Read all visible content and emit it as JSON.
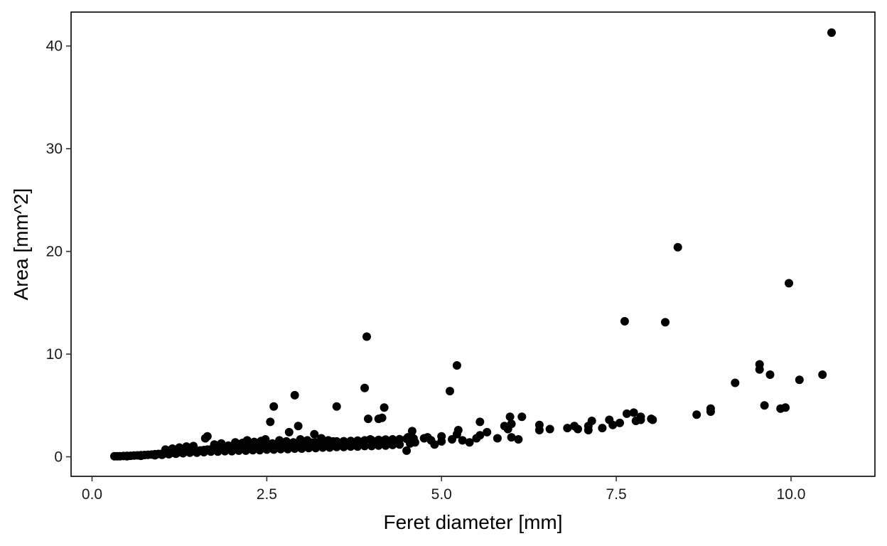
{
  "chart_data": {
    "type": "scatter",
    "title": "",
    "xlabel": "Feret diameter  [mm]",
    "ylabel": "Area  [mm^2]",
    "xlim": [
      -0.3,
      11.2
    ],
    "ylim": [
      -1.9,
      43.3
    ],
    "x_ticks": [
      0.0,
      2.5,
      5.0,
      7.5,
      10.0
    ],
    "x_tick_labels": [
      "0.0",
      "2.5",
      "5.0",
      "7.5",
      "10.0"
    ],
    "y_ticks": [
      0,
      10,
      20,
      30,
      40
    ],
    "y_tick_labels": [
      "0",
      "10",
      "20",
      "30",
      "40"
    ],
    "grid": false,
    "legend": "none",
    "point_color": "#000000",
    "points": [
      [
        0.32,
        0.05
      ],
      [
        0.36,
        0.06
      ],
      [
        0.4,
        0.05
      ],
      [
        0.45,
        0.08
      ],
      [
        0.5,
        0.09
      ],
      [
        0.55,
        0.1
      ],
      [
        0.6,
        0.12
      ],
      [
        0.65,
        0.14
      ],
      [
        0.7,
        0.16
      ],
      [
        0.75,
        0.18
      ],
      [
        0.8,
        0.2
      ],
      [
        0.85,
        0.22
      ],
      [
        0.9,
        0.25
      ],
      [
        0.95,
        0.28
      ],
      [
        1.0,
        0.3
      ],
      [
        1.05,
        0.34
      ],
      [
        1.1,
        0.38
      ],
      [
        1.15,
        0.4
      ],
      [
        1.2,
        0.44
      ],
      [
        1.25,
        0.46
      ],
      [
        1.3,
        0.5
      ],
      [
        1.35,
        0.52
      ],
      [
        1.4,
        0.55
      ],
      [
        1.45,
        0.58
      ],
      [
        1.5,
        0.6
      ],
      [
        1.55,
        0.62
      ],
      [
        1.6,
        0.66
      ],
      [
        1.65,
        0.7
      ],
      [
        1.7,
        0.72
      ],
      [
        1.75,
        0.75
      ],
      [
        1.8,
        0.78
      ],
      [
        1.85,
        0.8
      ],
      [
        1.9,
        0.82
      ],
      [
        1.95,
        0.85
      ],
      [
        2.0,
        0.88
      ],
      [
        2.05,
        0.9
      ],
      [
        2.1,
        0.92
      ],
      [
        2.15,
        0.95
      ],
      [
        2.2,
        0.98
      ],
      [
        2.25,
        1.0
      ],
      [
        2.3,
        1.02
      ],
      [
        2.35,
        1.05
      ],
      [
        2.4,
        1.08
      ],
      [
        2.45,
        1.1
      ],
      [
        2.5,
        1.1
      ],
      [
        2.55,
        1.12
      ],
      [
        2.6,
        1.15
      ],
      [
        2.65,
        1.18
      ],
      [
        2.7,
        1.2
      ],
      [
        2.75,
        1.22
      ],
      [
        2.8,
        1.25
      ],
      [
        2.85,
        1.25
      ],
      [
        2.9,
        1.28
      ],
      [
        2.95,
        1.3
      ],
      [
        3.0,
        1.32
      ],
      [
        3.05,
        1.35
      ],
      [
        3.1,
        1.36
      ],
      [
        3.15,
        1.38
      ],
      [
        3.2,
        1.4
      ],
      [
        3.25,
        1.42
      ],
      [
        3.3,
        1.44
      ],
      [
        3.35,
        1.45
      ],
      [
        3.4,
        1.48
      ],
      [
        3.45,
        1.5
      ],
      [
        3.5,
        1.5
      ],
      [
        3.6,
        1.52
      ],
      [
        3.7,
        1.55
      ],
      [
        3.8,
        1.58
      ],
      [
        3.9,
        1.6
      ],
      [
        4.0,
        1.62
      ],
      [
        4.1,
        1.65
      ],
      [
        4.2,
        1.68
      ],
      [
        4.3,
        1.7
      ],
      [
        4.4,
        1.72
      ],
      [
        4.5,
        1.75
      ],
      [
        4.6,
        1.78
      ],
      [
        4.75,
        1.8
      ],
      [
        0.5,
        0.05
      ],
      [
        0.7,
        0.1
      ],
      [
        0.9,
        0.15
      ],
      [
        1.0,
        0.2
      ],
      [
        1.1,
        0.25
      ],
      [
        1.2,
        0.3
      ],
      [
        1.3,
        0.35
      ],
      [
        1.4,
        0.4
      ],
      [
        1.5,
        0.4
      ],
      [
        1.6,
        0.45
      ],
      [
        1.7,
        0.5
      ],
      [
        1.8,
        0.5
      ],
      [
        1.9,
        0.55
      ],
      [
        2.0,
        0.55
      ],
      [
        2.1,
        0.6
      ],
      [
        2.2,
        0.6
      ],
      [
        2.3,
        0.65
      ],
      [
        2.4,
        0.65
      ],
      [
        2.5,
        0.7
      ],
      [
        2.6,
        0.7
      ],
      [
        2.7,
        0.75
      ],
      [
        2.8,
        0.75
      ],
      [
        2.9,
        0.8
      ],
      [
        3.0,
        0.8
      ],
      [
        3.1,
        0.85
      ],
      [
        3.2,
        0.85
      ],
      [
        3.3,
        0.9
      ],
      [
        3.4,
        0.9
      ],
      [
        3.5,
        0.95
      ],
      [
        3.6,
        0.95
      ],
      [
        3.7,
        1.0
      ],
      [
        3.8,
        1.0
      ],
      [
        3.9,
        1.05
      ],
      [
        4.0,
        1.05
      ],
      [
        4.1,
        1.1
      ],
      [
        4.2,
        1.1
      ],
      [
        4.3,
        1.15
      ],
      [
        4.4,
        1.2
      ],
      [
        4.5,
        0.6
      ],
      [
        4.55,
        1.3
      ],
      [
        1.05,
        0.7
      ],
      [
        1.15,
        0.8
      ],
      [
        1.25,
        0.9
      ],
      [
        1.35,
        1.0
      ],
      [
        1.45,
        1.05
      ],
      [
        1.62,
        1.8
      ],
      [
        1.65,
        2.0
      ],
      [
        1.75,
        1.2
      ],
      [
        1.85,
        1.3
      ],
      [
        1.95,
        1.1
      ],
      [
        2.05,
        1.4
      ],
      [
        2.15,
        1.35
      ],
      [
        2.22,
        1.6
      ],
      [
        2.32,
        1.45
      ],
      [
        2.42,
        1.55
      ],
      [
        2.48,
        1.7
      ],
      [
        2.58,
        1.3
      ],
      [
        2.68,
        1.6
      ],
      [
        2.78,
        1.5
      ],
      [
        2.88,
        1.4
      ],
      [
        2.98,
        1.7
      ],
      [
        3.08,
        1.6
      ],
      [
        3.18,
        2.2
      ],
      [
        3.28,
        1.8
      ],
      [
        3.38,
        1.6
      ],
      [
        3.48,
        1.4
      ],
      [
        3.58,
        1.2
      ],
      [
        3.68,
        1.3
      ],
      [
        3.78,
        1.1
      ],
      [
        3.88,
        1.5
      ],
      [
        3.98,
        1.7
      ],
      [
        4.08,
        1.4
      ],
      [
        4.18,
        1.6
      ],
      [
        4.28,
        1.5
      ],
      [
        4.38,
        1.4
      ],
      [
        4.52,
        1.9
      ],
      [
        4.58,
        2.5
      ],
      [
        4.62,
        1.4
      ],
      [
        2.55,
        3.4
      ],
      [
        2.6,
        4.9
      ],
      [
        2.82,
        2.4
      ],
      [
        2.9,
        6.0
      ],
      [
        2.95,
        3.0
      ],
      [
        3.5,
        4.9
      ],
      [
        3.9,
        6.7
      ],
      [
        3.93,
        11.7
      ],
      [
        3.95,
        3.7
      ],
      [
        4.1,
        3.7
      ],
      [
        4.15,
        3.8
      ],
      [
        4.18,
        4.8
      ],
      [
        4.8,
        1.9
      ],
      [
        4.85,
        1.6
      ],
      [
        4.9,
        1.2
      ],
      [
        5.0,
        1.5
      ],
      [
        5.0,
        2.0
      ],
      [
        5.15,
        1.7
      ],
      [
        5.12,
        6.4
      ],
      [
        5.22,
        2.2
      ],
      [
        5.22,
        8.9
      ],
      [
        5.24,
        2.6
      ],
      [
        5.3,
        1.6
      ],
      [
        5.4,
        1.4
      ],
      [
        5.5,
        1.8
      ],
      [
        5.55,
        3.4
      ],
      [
        5.55,
        2.1
      ],
      [
        5.65,
        2.4
      ],
      [
        5.8,
        1.8
      ],
      [
        5.9,
        3.0
      ],
      [
        5.95,
        2.7
      ],
      [
        5.98,
        3.9
      ],
      [
        6.0,
        3.2
      ],
      [
        6.0,
        1.9
      ],
      [
        6.1,
        1.7
      ],
      [
        6.15,
        3.9
      ],
      [
        6.4,
        3.1
      ],
      [
        6.4,
        2.6
      ],
      [
        6.55,
        2.7
      ],
      [
        6.8,
        2.8
      ],
      [
        6.9,
        3.0
      ],
      [
        6.95,
        2.7
      ],
      [
        7.1,
        2.6
      ],
      [
        7.1,
        3.0
      ],
      [
        7.15,
        3.5
      ],
      [
        7.3,
        2.8
      ],
      [
        7.4,
        3.6
      ],
      [
        7.45,
        3.1
      ],
      [
        7.55,
        3.3
      ],
      [
        7.62,
        13.2
      ],
      [
        7.65,
        4.2
      ],
      [
        7.75,
        4.3
      ],
      [
        7.78,
        3.5
      ],
      [
        7.85,
        3.6
      ],
      [
        7.85,
        3.9
      ],
      [
        8.0,
        3.7
      ],
      [
        8.02,
        3.6
      ],
      [
        8.2,
        13.1
      ],
      [
        8.38,
        20.4
      ],
      [
        8.65,
        4.1
      ],
      [
        8.85,
        4.7
      ],
      [
        8.85,
        4.4
      ],
      [
        9.2,
        7.2
      ],
      [
        9.55,
        8.5
      ],
      [
        9.55,
        9.0
      ],
      [
        9.62,
        5.0
      ],
      [
        9.7,
        8.0
      ],
      [
        9.85,
        4.7
      ],
      [
        9.92,
        4.8
      ],
      [
        9.97,
        16.9
      ],
      [
        10.12,
        7.5
      ],
      [
        10.45,
        8.0
      ],
      [
        10.58,
        41.3
      ]
    ]
  }
}
